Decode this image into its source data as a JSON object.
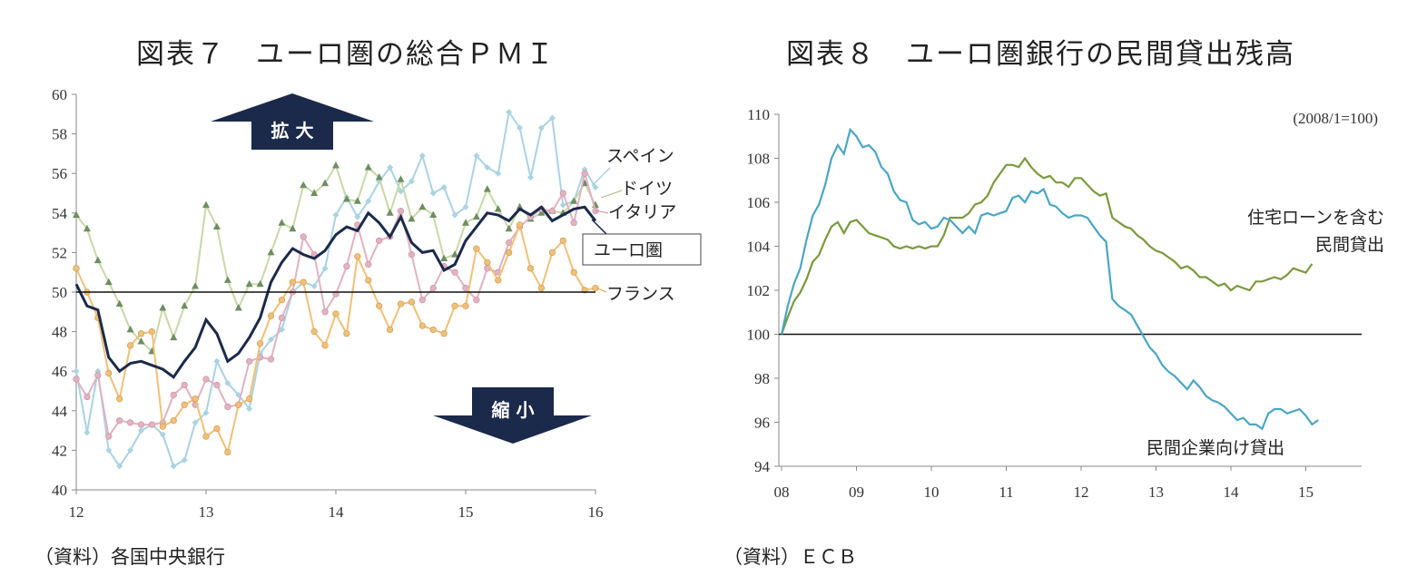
{
  "titles": {
    "chart1": "図表７　ユーロ圏の総合ＰＭＩ",
    "chart2": "図表８　ユーロ圏銀行の民間貸出残高"
  },
  "sources": {
    "chart1": "（資料）各国中央銀行",
    "chart2": "（資料）ＥＣＢ"
  },
  "chart_data": [
    {
      "type": "line",
      "title": "図表７　ユーロ圏の総合ＰＭＩ",
      "x_ticks": [
        "12",
        "13",
        "14",
        "15",
        "16"
      ],
      "ylim": [
        40,
        60
      ],
      "y_ticks": [
        40,
        42,
        44,
        46,
        48,
        50,
        52,
        54,
        56,
        58,
        60
      ],
      "reference_line": 50,
      "arrow_up_label": "拡 大",
      "arrow_down_label": "縮 小",
      "x_start": 2012.0,
      "x_step": 0.0833333,
      "series": [
        {
          "name": "ユーロ圏",
          "color": "#1b2a4a",
          "marker": "none",
          "values": [
            50.4,
            49.3,
            49.1,
            46.7,
            46.0,
            46.4,
            46.5,
            46.3,
            46.1,
            45.7,
            46.5,
            47.2,
            48.6,
            47.9,
            46.5,
            46.9,
            47.7,
            48.7,
            50.5,
            51.5,
            52.2,
            51.9,
            51.7,
            52.1,
            52.9,
            53.3,
            53.1,
            54.0,
            53.5,
            52.8,
            53.8,
            52.5,
            52.0,
            52.1,
            51.1,
            51.4,
            52.6,
            53.3,
            54.0,
            53.9,
            53.6,
            54.2,
            53.9,
            54.3,
            53.6,
            53.9,
            54.2,
            54.3,
            53.6
          ]
        },
        {
          "name": "スペイン",
          "color": "#aad3e2",
          "marker": "diamond",
          "values": [
            46.0,
            42.9,
            46.0,
            42.0,
            41.2,
            42.0,
            43.0,
            43.3,
            42.8,
            41.2,
            41.5,
            43.4,
            43.9,
            46.5,
            45.4,
            44.8,
            44.1,
            46.9,
            47.6,
            48.1,
            50.0,
            50.5,
            50.3,
            51.2,
            53.9,
            54.8,
            53.8,
            54.6,
            55.6,
            56.3,
            55.1,
            55.6,
            56.9,
            55.0,
            55.3,
            53.9,
            54.3,
            56.9,
            56.3,
            56.0,
            59.1,
            58.3,
            55.8,
            58.3,
            58.8,
            54.4,
            54.6,
            56.2,
            55.3
          ]
        },
        {
          "name": "ドイツ",
          "color": "#c8d8a8",
          "marker": "triangle",
          "values": [
            53.9,
            53.2,
            51.6,
            50.5,
            49.4,
            48.1,
            47.5,
            47.0,
            49.2,
            47.7,
            49.3,
            50.3,
            54.4,
            53.3,
            50.6,
            49.2,
            50.4,
            50.4,
            52.0,
            53.5,
            53.2,
            55.4,
            55.0,
            55.5,
            56.4,
            54.7,
            54.6,
            56.3,
            55.8,
            54.0,
            55.7,
            53.7,
            54.3,
            53.9,
            51.7,
            51.9,
            53.5,
            53.8,
            55.2,
            54.2,
            53.2,
            54.3,
            53.7,
            54.0,
            54.1,
            54.0,
            54.6,
            55.5,
            54.4
          ]
        },
        {
          "name": "イタリア",
          "color": "#e2b2c0",
          "marker": "circle",
          "values": [
            45.6,
            44.7,
            45.8,
            42.7,
            43.5,
            43.4,
            43.3,
            43.3,
            43.4,
            44.8,
            45.3,
            44.3,
            45.6,
            45.3,
            44.2,
            44.3,
            46.5,
            46.7,
            46.6,
            48.7,
            50.0,
            52.8,
            51.9,
            49.0,
            49.9,
            51.3,
            53.4,
            51.4,
            52.6,
            52.8,
            54.1,
            51.9,
            49.6,
            50.2,
            51.3,
            51.0,
            50.2,
            49.6,
            51.2,
            51.0,
            52.5,
            53.3,
            53.8,
            54.2,
            54.1,
            55.0,
            53.5,
            56.0,
            54.1
          ]
        },
        {
          "name": "フランス",
          "color": "#f0c078",
          "marker": "circle",
          "values": [
            51.2,
            50.0,
            48.7,
            45.9,
            44.6,
            47.3,
            47.9,
            48.0,
            43.2,
            43.5,
            44.3,
            44.6,
            42.7,
            43.1,
            41.9,
            44.3,
            44.6,
            47.4,
            48.8,
            49.6,
            50.5,
            50.5,
            48.0,
            47.3,
            48.9,
            47.9,
            51.8,
            50.6,
            49.3,
            48.1,
            49.4,
            49.5,
            48.3,
            48.1,
            47.9,
            49.3,
            49.3,
            52.2,
            51.5,
            50.6,
            52.0,
            53.4,
            51.2,
            50.2,
            52.0,
            52.6,
            51.0,
            50.1,
            50.2
          ]
        }
      ],
      "series_labels": [
        "スペイン",
        "ドイツ",
        "イタリア",
        "ユーロ圏",
        "フランス"
      ]
    },
    {
      "type": "line",
      "title": "図表８　ユーロ圏銀行の民間貸出残高",
      "unit_note": "(2008/1=100)",
      "x_ticks": [
        "08",
        "09",
        "10",
        "11",
        "12",
        "13",
        "14",
        "15"
      ],
      "ylim": [
        94,
        110
      ],
      "y_ticks": [
        94,
        96,
        98,
        100,
        102,
        104,
        106,
        108,
        110
      ],
      "reference_line": 100,
      "x_start": 2008.0,
      "x_step": 0.0833333,
      "series": [
        {
          "name": "住宅ローンを含む民間貸出",
          "color": "#7a9a3c",
          "values": [
            100.0,
            100.8,
            101.5,
            101.9,
            102.5,
            103.3,
            103.6,
            104.3,
            104.9,
            105.1,
            104.6,
            105.1,
            105.2,
            104.9,
            104.6,
            104.5,
            104.4,
            104.3,
            104.0,
            103.9,
            104.0,
            103.9,
            104.0,
            103.9,
            104.0,
            104.0,
            104.5,
            105.3,
            105.3,
            105.3,
            105.5,
            105.9,
            106.0,
            106.3,
            106.9,
            107.3,
            107.7,
            107.7,
            107.6,
            108.0,
            107.6,
            107.3,
            107.1,
            107.2,
            106.9,
            106.9,
            106.7,
            107.1,
            107.1,
            106.8,
            106.5,
            106.3,
            106.4,
            105.3,
            105.1,
            104.9,
            104.8,
            104.5,
            104.3,
            104.0,
            103.8,
            103.7,
            103.5,
            103.3,
            103.0,
            103.1,
            102.9,
            102.6,
            102.6,
            102.4,
            102.2,
            102.3,
            102.0,
            102.2,
            102.1,
            102.0,
            102.4,
            102.4,
            102.5,
            102.6,
            102.5,
            102.7,
            103.0,
            102.9,
            102.8,
            103.2
          ]
        },
        {
          "name": "民間企業向け貸出",
          "color": "#4aa6c4",
          "values": [
            100.0,
            101.3,
            102.3,
            103.0,
            104.3,
            105.4,
            105.9,
            106.8,
            108.0,
            108.6,
            108.2,
            109.3,
            109.0,
            108.5,
            108.6,
            108.3,
            107.6,
            107.3,
            106.5,
            106.1,
            106.0,
            105.2,
            105.0,
            105.1,
            104.8,
            104.9,
            105.3,
            105.2,
            104.9,
            104.6,
            104.9,
            104.6,
            105.4,
            105.5,
            105.4,
            105.5,
            105.6,
            106.2,
            106.3,
            106.0,
            106.5,
            106.4,
            106.6,
            105.9,
            105.8,
            105.5,
            105.3,
            105.4,
            105.4,
            105.3,
            104.9,
            104.5,
            104.2,
            101.6,
            101.3,
            101.1,
            100.9,
            100.4,
            99.9,
            99.4,
            99.1,
            98.6,
            98.3,
            98.1,
            97.8,
            97.5,
            97.9,
            97.6,
            97.2,
            97.0,
            96.9,
            96.7,
            96.4,
            96.1,
            96.2,
            95.9,
            95.9,
            95.7,
            96.4,
            96.6,
            96.6,
            96.4,
            96.5,
            96.6,
            96.3,
            95.9,
            96.1
          ]
        }
      ],
      "series_labels": [
        "住宅ローンを含む",
        "民間貸出",
        "民間企業向け貸出"
      ]
    }
  ]
}
